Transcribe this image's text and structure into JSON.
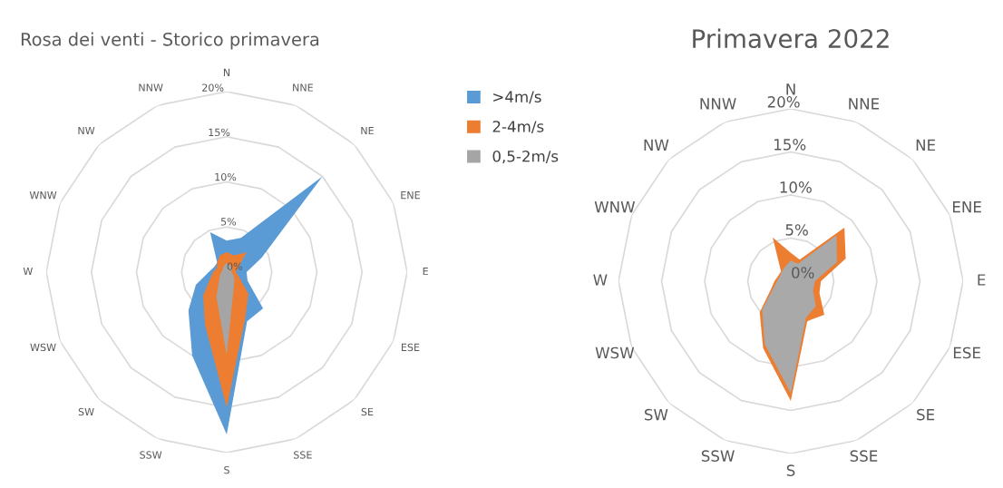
{
  "chart_data": [
    {
      "type": "radar",
      "title": "Rosa dei venti - Storico primavera",
      "categories": [
        "N",
        "NNE",
        "NE",
        "ENE",
        "E",
        "ESE",
        "SE",
        "SSE",
        "S",
        "SSW",
        "SW",
        "WSW",
        "W",
        "WNW",
        "NW",
        "NNW"
      ],
      "ylim": [
        0,
        20
      ],
      "yticks": [
        {
          "value": 0,
          "label": "0%"
        },
        {
          "value": 5,
          "label": "5%"
        },
        {
          "value": 10,
          "label": "10%"
        },
        {
          "value": 15,
          "label": "15%"
        },
        {
          "value": 20,
          "label": "20%"
        }
      ],
      "grid": true,
      "legend": "right",
      "series": [
        {
          "name": ">4m/s",
          "color": "#5b9bd5",
          "values": [
            3.5,
            4.1,
            15,
            4.2,
            2.2,
            2.5,
            5.7,
            5.9,
            18,
            10,
            6,
            3.7,
            2,
            1.5,
            1.5,
            4.8
          ]
        },
        {
          "name": "2-4m/s",
          "color": "#ed7d31",
          "values": [
            2.2,
            2,
            3.1,
            1.4,
            1,
            1.5,
            3.4,
            5.4,
            15,
            6.3,
            3.7,
            2,
            1.5,
            1.2,
            1.5,
            2
          ]
        },
        {
          "name": "0,5-2m/s",
          "color": "#a5a5a5",
          "values": [
            1,
            0.8,
            0.8,
            0.6,
            0.5,
            0.8,
            1.2,
            2,
            9.2,
            3,
            1.2,
            0.8,
            0.6,
            0.5,
            0.6,
            0.8
          ]
        }
      ]
    },
    {
      "type": "radar",
      "title": "Primavera 2022",
      "categories": [
        "N",
        "NNE",
        "NE",
        "ENE",
        "E",
        "ESE",
        "SE",
        "SSE",
        "S",
        "SSW",
        "SW",
        "WSW",
        "W",
        "WNW",
        "NW",
        "NNW"
      ],
      "ylim": [
        0,
        20
      ],
      "yticks": [
        {
          "value": 0,
          "label": "0%"
        },
        {
          "value": 5,
          "label": "5%"
        },
        {
          "value": 10,
          "label": "10%"
        },
        {
          "value": 15,
          "label": "15%"
        },
        {
          "value": 20,
          "label": "20%"
        }
      ],
      "grid": true,
      "series": [
        {
          "color": "#ed7d31",
          "values": [
            3.3,
            2.7,
            8.8,
            6.9,
            3.5,
            3.6,
            5.5,
            5,
            13.9,
            8.4,
            5.1,
            2.5,
            1.9,
            1.6,
            1.6,
            5.5
          ]
        },
        {
          "color": "#a9a9a9",
          "values": [
            2.4,
            2.2,
            7.5,
            5.8,
            2.8,
            2.8,
            4.1,
            4.6,
            13,
            7.9,
            4.7,
            2.2,
            1.6,
            1.4,
            1.5,
            1.8
          ]
        }
      ]
    }
  ]
}
